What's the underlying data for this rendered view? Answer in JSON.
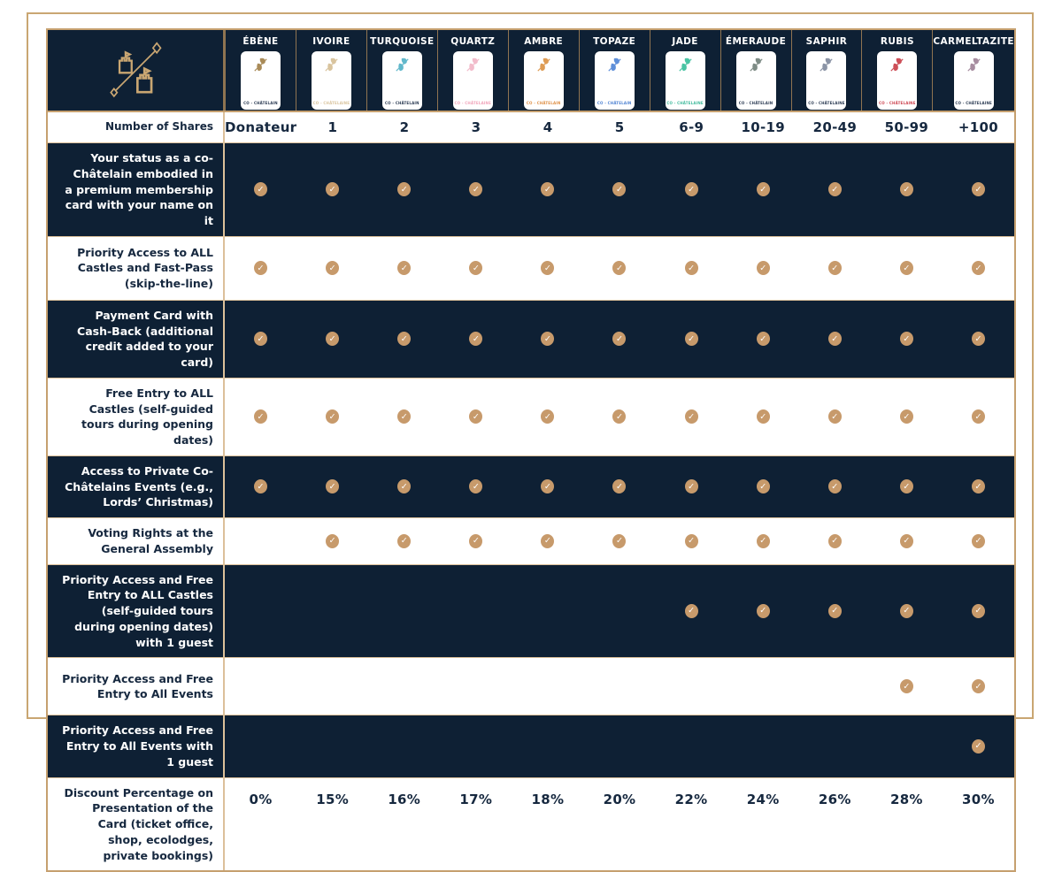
{
  "colors": {
    "navy_row": "#0E2034",
    "gold_border": "#C6A06F",
    "check_badge": "#C79A6B",
    "text_navy": "#16283F",
    "logo_gold": "#C9A672"
  },
  "icons": {
    "check": "✓"
  },
  "table": {
    "shares": {
      "label": "Number of Shares",
      "values": [
        "Donateur",
        "1",
        "2",
        "3",
        "4",
        "5",
        "6-9",
        "10-19",
        "20-49",
        "50-99",
        "+100"
      ]
    },
    "tiers": [
      {
        "name": "ÉBÈNE",
        "card_label": "CO - CHÂTELAIN",
        "emblem_color": "#A98B58",
        "card_label_color": "#2A3A52"
      },
      {
        "name": "IVOIRE",
        "card_label": "CO - CHÂTELAINE",
        "emblem_color": "#D9C49E",
        "card_label_color": "#D9C49E"
      },
      {
        "name": "TURQUOISE",
        "card_label": "CO - CHÂTELAIN",
        "emblem_color": "#62B8CB",
        "card_label_color": "#2A3A52"
      },
      {
        "name": "QUARTZ",
        "card_label": "CO - CHÂTELAINE",
        "emblem_color": "#F2BCCB",
        "card_label_color": "#F0A4BA"
      },
      {
        "name": "AMBRE",
        "card_label": "CO - CHÂTELAIN",
        "emblem_color": "#DE9C55",
        "card_label_color": "#DE8F45"
      },
      {
        "name": "TOPAZE",
        "card_label": "CO - CHÂTELAIN",
        "emblem_color": "#5E8FD9",
        "card_label_color": "#4E82D2"
      },
      {
        "name": "JADE",
        "card_label": "CO - CHÂTELAINE",
        "emblem_color": "#4AC4A4",
        "card_label_color": "#3FBA9C"
      },
      {
        "name": "ÉMERAUDE",
        "card_label": "CO - CHÂTELAIN",
        "emblem_color": "#7E8C86",
        "card_label_color": "#2A3A52"
      },
      {
        "name": "SAPHIR",
        "card_label": "CO - CHÂTELAINE",
        "emblem_color": "#8B94A6",
        "card_label_color": "#2A3A52"
      },
      {
        "name": "RUBIS",
        "card_label": "CO - CHÂTELAINE",
        "emblem_color": "#CD4F58",
        "card_label_color": "#CC4450"
      },
      {
        "name": "CARMELTAZITE",
        "card_label": "CO - CHÂTELAINE",
        "emblem_color": "#A78DA0",
        "card_label_color": "#2A3A52"
      }
    ],
    "benefits": [
      {
        "label": "Your status as a co-Châtelain embodied in a premium membership card with your name on it",
        "checks": [
          true,
          true,
          true,
          true,
          true,
          true,
          true,
          true,
          true,
          true,
          true
        ]
      },
      {
        "label": "Priority Access to ALL Castles and Fast-Pass (skip-the-line)",
        "checks": [
          true,
          true,
          true,
          true,
          true,
          true,
          true,
          true,
          true,
          true,
          true
        ]
      },
      {
        "label": "Payment Card with Cash-Back (additional credit added to your card)",
        "checks": [
          true,
          true,
          true,
          true,
          true,
          true,
          true,
          true,
          true,
          true,
          true
        ]
      },
      {
        "label": "Free Entry to ALL Castles (self-guided tours during opening dates)",
        "checks": [
          true,
          true,
          true,
          true,
          true,
          true,
          true,
          true,
          true,
          true,
          true
        ]
      },
      {
        "label": "Access to Private Co-Châtelains Events (e.g., Lords’ Christmas)",
        "checks": [
          true,
          true,
          true,
          true,
          true,
          true,
          true,
          true,
          true,
          true,
          true
        ]
      },
      {
        "label": "Voting Rights at the General Assembly",
        "checks": [
          false,
          true,
          true,
          true,
          true,
          true,
          true,
          true,
          true,
          true,
          true
        ]
      },
      {
        "label": "Priority Access and Free Entry to ALL Castles (self-guided tours during opening dates) with 1 guest",
        "checks": [
          false,
          false,
          false,
          false,
          false,
          false,
          true,
          true,
          true,
          true,
          true
        ]
      },
      {
        "label": "Priority Access and Free Entry to All Events",
        "checks": [
          false,
          false,
          false,
          false,
          false,
          false,
          false,
          false,
          false,
          true,
          true
        ]
      },
      {
        "label": "Priority Access and Free Entry to All Events with 1 guest",
        "checks": [
          false,
          false,
          false,
          false,
          false,
          false,
          false,
          false,
          false,
          false,
          true
        ]
      }
    ],
    "discount": {
      "label": "Discount Percentage on Presentation of the Card (ticket office, shop, ecolodges, private bookings)",
      "values": [
        "0%",
        "15%",
        "16%",
        "17%",
        "18%",
        "20%",
        "22%",
        "24%",
        "26%",
        "28%",
        "30%"
      ]
    }
  }
}
